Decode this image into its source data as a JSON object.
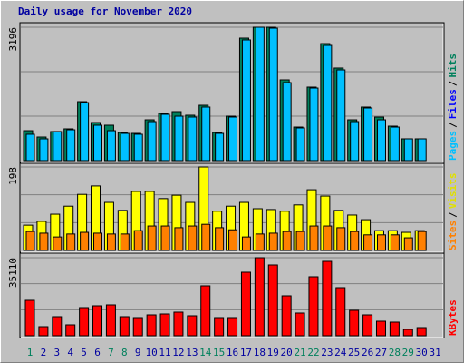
{
  "title": "Daily usage for November 2020",
  "title_color": "#0000a0",
  "chart_data": [
    {
      "type": "bar",
      "ylim": [
        0,
        3196
      ],
      "yticks": [
        3196
      ],
      "series": [
        {
          "name": "Hits",
          "color": "#00805c",
          "values": [
            717,
            565,
            696,
            761,
            1413,
            913,
            848,
            674,
            652,
            978,
            1130,
            1174,
            1087,
            1326,
            674,
            1065,
            2935,
            3196,
            3196,
            1935,
            804,
            1761,
            2804,
            2218,
            978,
            1283,
            1043,
            826,
            522,
            522,
            null
          ]
        },
        {
          "name": "Pages",
          "color": "#00c0ff",
          "values": [
            631,
            522,
            696,
            739,
            1391,
            848,
            717,
            652,
            631,
            935,
            1109,
            1065,
            1044,
            1283,
            652,
            1044,
            2892,
            3196,
            3174,
            1870,
            783,
            1739,
            2761,
            2174,
            935,
            1261,
            978,
            804,
            522,
            522,
            null
          ]
        }
      ],
      "legend": [
        {
          "text": "Pages",
          "color": "#00c0ff"
        },
        {
          "text": "/",
          "color": "#000000"
        },
        {
          "text": "Files",
          "color": "#0000ff"
        },
        {
          "text": "/",
          "color": "#000000"
        },
        {
          "text": "Hits",
          "color": "#00805c"
        }
      ]
    },
    {
      "type": "bar",
      "ylim": [
        0,
        198
      ],
      "yticks": [
        198
      ],
      "series": [
        {
          "name": "Visits",
          "color": "#ffff00",
          "values": [
            60,
            69,
            86,
            105,
            133,
            153,
            114,
            95,
            140,
            140,
            123,
            131,
            114,
            198,
            93,
            105,
            114,
            99,
            97,
            93,
            108,
            144,
            129,
            95,
            84,
            73,
            47,
            47,
            43,
            47,
            null
          ]
        },
        {
          "name": "Sites",
          "color": "#ff8000",
          "values": [
            45,
            41,
            32,
            39,
            43,
            41,
            39,
            39,
            47,
            58,
            58,
            54,
            58,
            62,
            54,
            49,
            32,
            39,
            41,
            45,
            45,
            58,
            58,
            54,
            45,
            37,
            37,
            37,
            30,
            45,
            null
          ]
        }
      ],
      "legend": [
        {
          "text": "Sites",
          "color": "#ff8000"
        },
        {
          "text": "/",
          "color": "#000000"
        },
        {
          "text": "Visits",
          "color": "#e0e000"
        }
      ]
    },
    {
      "type": "bar",
      "ylim": [
        0,
        35110
      ],
      "yticks": [
        35110
      ],
      "categories": [
        "1",
        "2",
        "3",
        "4",
        "5",
        "6",
        "7",
        "8",
        "9",
        "10",
        "11",
        "12",
        "13",
        "14",
        "15",
        "16",
        "17",
        "18",
        "19",
        "20",
        "21",
        "22",
        "23",
        "24",
        "25",
        "26",
        "27",
        "28",
        "29",
        "30",
        "31"
      ],
      "weekends": [
        0,
        6,
        7,
        13,
        14,
        20,
        21,
        27,
        28
      ],
      "weekday_color": "#0000a0",
      "weekend_color": "#00805c",
      "series": [
        {
          "name": "KBytes",
          "color": "#ff0000",
          "values": [
            15924,
            4083,
            8575,
            4900,
            12657,
            13473,
            13882,
            8575,
            8166,
            9391,
            9799,
            10616,
            8983,
            22457,
            8166,
            8166,
            28581,
            35110,
            31847,
            17965,
            10208,
            26540,
            33481,
            21640,
            11432,
            9391,
            6533,
            6124,
            2858,
            3675,
            null
          ]
        }
      ],
      "legend": [
        {
          "text": "KBytes",
          "color": "#ff0000"
        }
      ]
    }
  ]
}
